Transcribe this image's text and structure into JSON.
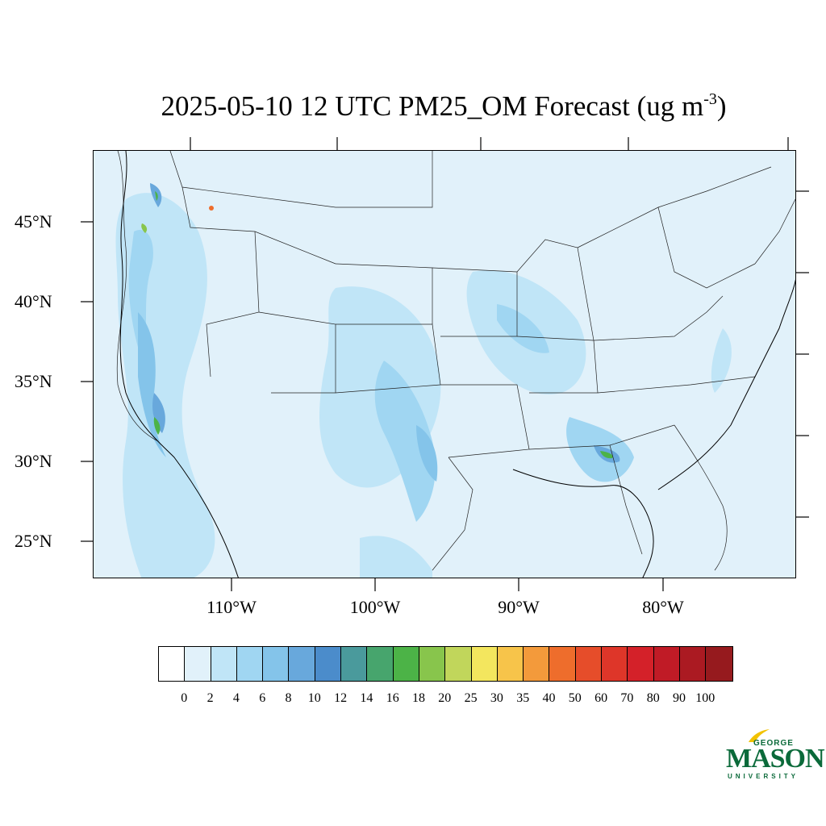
{
  "title": {
    "main": "2025-05-10 12 UTC PM25_OM Forecast (ug m",
    "exponent": "-3",
    "close": ")"
  },
  "map": {
    "lat_labels": [
      "45°N",
      "40°N",
      "35°N",
      "30°N",
      "25°N"
    ],
    "lon_labels": [
      "110°W",
      "100°W",
      "90°W",
      "80°W"
    ],
    "background_color": "#e1f1fa",
    "border_color": "#000000"
  },
  "colorbar": {
    "colors": [
      "#ffffff",
      "#e1f1fa",
      "#c0e5f7",
      "#a0d6f2",
      "#84c4ea",
      "#68a8dc",
      "#4b8ccb",
      "#4a9a9c",
      "#47a56d",
      "#4cb347",
      "#88c54c",
      "#c1d65b",
      "#f3e65e",
      "#f7c44a",
      "#f39a3b",
      "#ee6d2c",
      "#e64d2a",
      "#de3629",
      "#d42129",
      "#c01b26",
      "#ab1a22",
      "#961a1e"
    ],
    "labels": [
      "0",
      "2",
      "4",
      "6",
      "8",
      "10",
      "12",
      "14",
      "16",
      "18",
      "20",
      "25",
      "30",
      "35",
      "40",
      "50",
      "60",
      "70",
      "80",
      "90",
      "100"
    ]
  },
  "logo": {
    "line1": "GEORGE",
    "line2": "MASON",
    "line3": "UNIVERSITY",
    "color": "#0b6a3a",
    "accent": "#f2c200"
  }
}
